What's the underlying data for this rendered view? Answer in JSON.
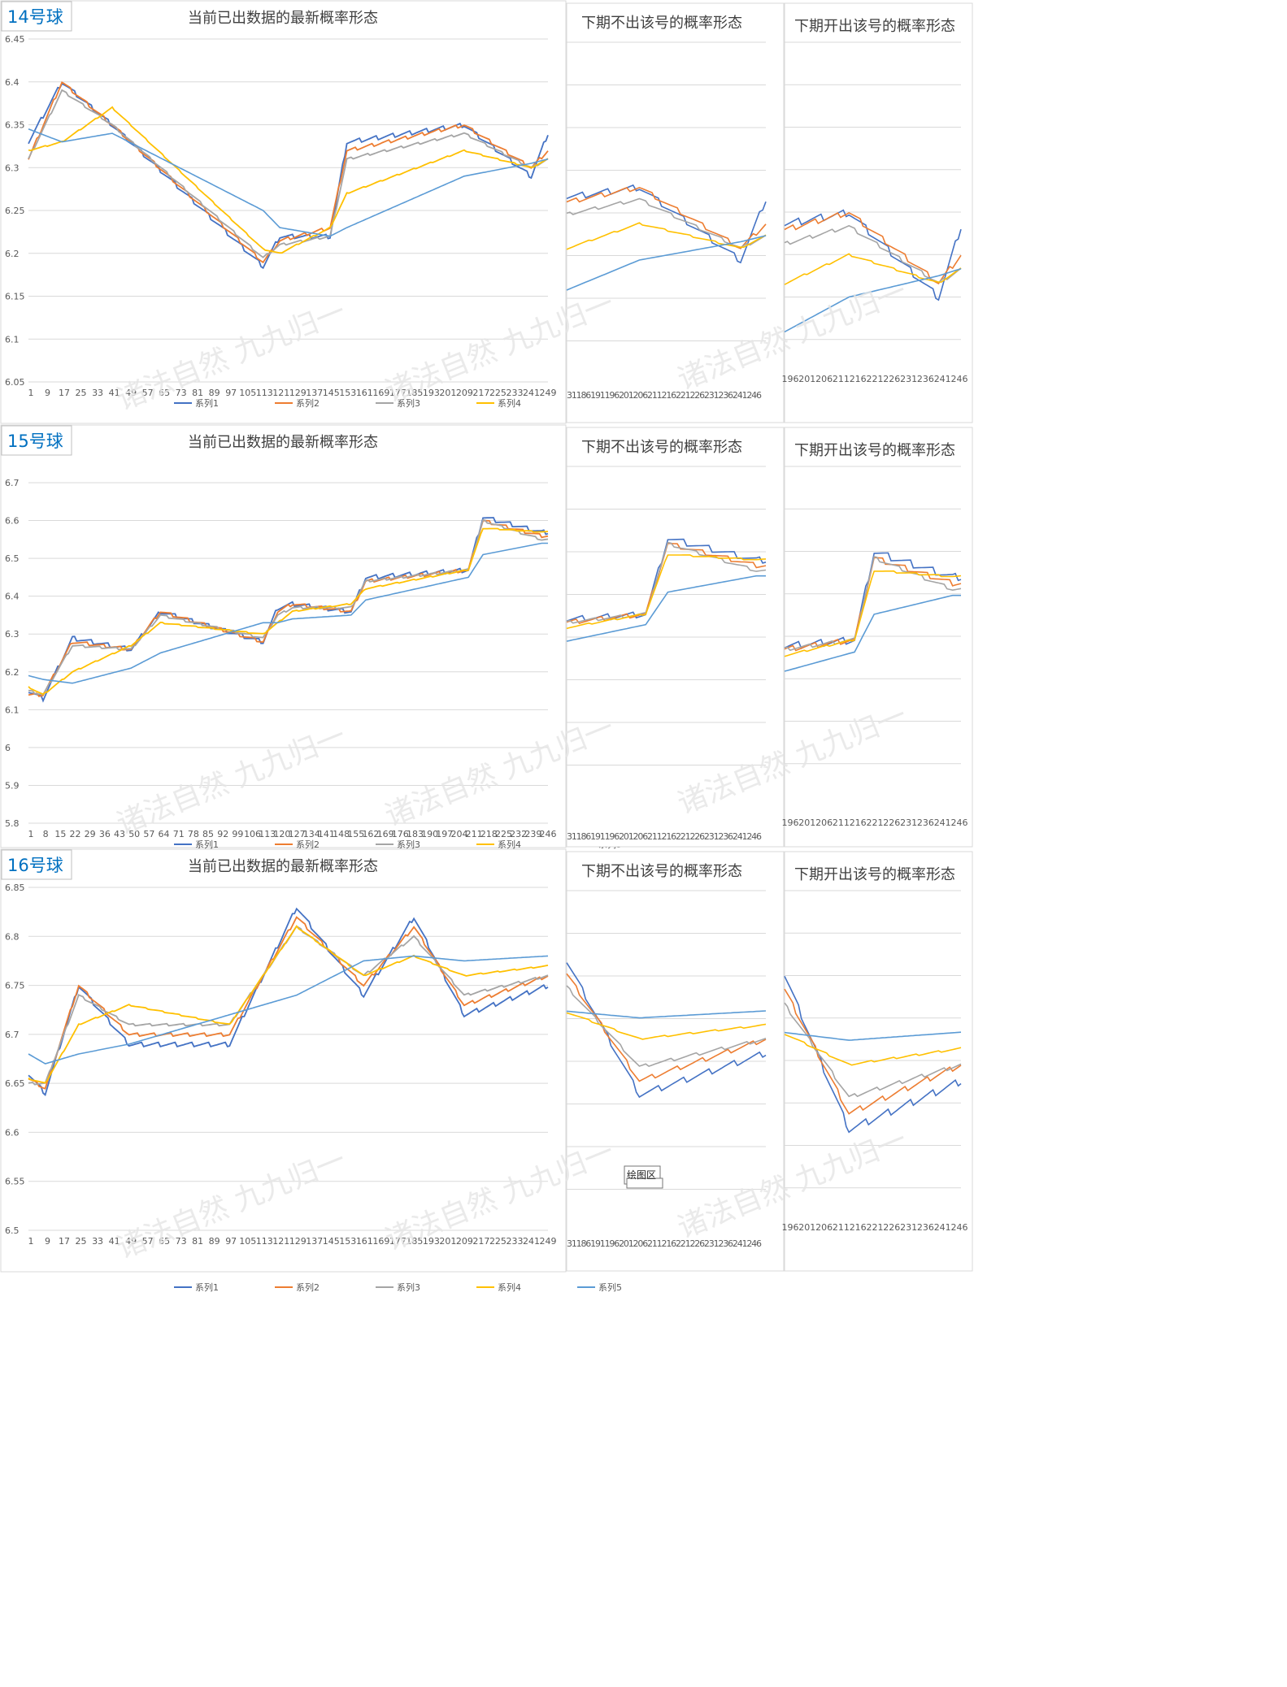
{
  "watermark_text": "诸法自然 九九归一",
  "tooltip": "绘图区",
  "colors": {
    "s1": "#4472C4",
    "s2": "#ED7D31",
    "s3": "#A5A5A5",
    "s4": "#FFC000",
    "s5": "#5B9BD5",
    "grid": "#D9D9D9",
    "axis_text": "#595959",
    "title_text": "#404040",
    "label_blue": "#0070C0"
  },
  "legend": [
    "系列1",
    "系列2",
    "系列3",
    "系列4",
    "系列5"
  ],
  "rows": [
    {
      "ball_label": "14号球",
      "main_title": "当前已出数据的最新概率形态",
      "mid_title": "下期不出该号的概率形态",
      "right_title": "下期开出该号的概率形态",
      "yticks": [
        "6.45",
        "6.4",
        "6.35",
        "6.3",
        "6.25",
        "6.2",
        "6.15",
        "6.1",
        "6.05"
      ],
      "xticks": [
        "1",
        "9",
        "17",
        "25",
        "33",
        "41",
        "49",
        "57",
        "65",
        "73",
        "81",
        "89",
        "97",
        "105",
        "113",
        "121",
        "129",
        "137",
        "145",
        "153",
        "161",
        "169",
        "177",
        "185",
        "193",
        "201",
        "209",
        "217",
        "225",
        "233",
        "241",
        "249"
      ],
      "mid_xtick_text": "31186191196201206211216221226231236241246",
      "right_xticks": [
        "196",
        "201",
        "206",
        "211",
        "216",
        "221",
        "226",
        "231",
        "236",
        "241",
        "246"
      ]
    },
    {
      "ball_label": "15号球",
      "main_title": "当前已出数据的最新概率形态",
      "mid_title": "下期不出该号的概率形态",
      "right_title": "下期开出该号的概率形态",
      "yticks": [
        "6.7",
        "6.6",
        "6.5",
        "6.4",
        "6.3",
        "6.2",
        "6.1",
        "6",
        "5.9",
        "5.8"
      ],
      "xticks": [
        "1",
        "8",
        "15",
        "22",
        "29",
        "36",
        "43",
        "50",
        "57",
        "64",
        "71",
        "78",
        "85",
        "92",
        "99",
        "106",
        "113",
        "120",
        "127",
        "134",
        "141",
        "148",
        "155",
        "162",
        "169",
        "176",
        "183",
        "190",
        "197",
        "204",
        "211",
        "218",
        "225",
        "232",
        "239",
        "246"
      ],
      "mid_xtick_text": "31186191196201206211216221226231236241246",
      "right_xticks": [
        "196",
        "201",
        "206",
        "211",
        "216",
        "221",
        "226",
        "231",
        "236",
        "241",
        "246"
      ]
    },
    {
      "ball_label": "16号球",
      "main_title": "当前已出数据的最新概率形态",
      "mid_title": "下期不出该号的概率形态",
      "right_title": "下期开出该号的概率形态",
      "yticks": [
        "6.85",
        "6.8",
        "6.75",
        "6.7",
        "6.65",
        "6.6",
        "6.55",
        "6.5"
      ],
      "xticks": [
        "1",
        "9",
        "17",
        "25",
        "33",
        "41",
        "49",
        "57",
        "65",
        "73",
        "81",
        "89",
        "97",
        "105",
        "113",
        "121",
        "129",
        "137",
        "145",
        "153",
        "161",
        "169",
        "177",
        "185",
        "193",
        "201",
        "209",
        "217",
        "225",
        "233",
        "241",
        "249"
      ],
      "mid_xtick_text": "31186191196201206211216221226231236241246",
      "right_xticks": [
        "196",
        "201",
        "206",
        "211",
        "216",
        "221",
        "226",
        "231",
        "236",
        "241",
        "246"
      ]
    }
  ],
  "chart_data": [
    {
      "type": "line",
      "title": "当前已出数据的最新概率形态",
      "ylim": [
        6.05,
        6.45
      ],
      "x": [
        1,
        17,
        41,
        113,
        121,
        145,
        153,
        209,
        241,
        249
      ],
      "series": [
        {
          "name": "系列1",
          "values": [
            6.33,
            6.4,
            6.35,
            6.185,
            6.22,
            6.22,
            6.33,
            6.35,
            6.29,
            6.34
          ]
        },
        {
          "name": "系列2",
          "values": [
            6.31,
            6.4,
            6.35,
            6.19,
            6.215,
            6.23,
            6.32,
            6.35,
            6.3,
            6.32
          ]
        },
        {
          "name": "系列3",
          "values": [
            6.31,
            6.39,
            6.35,
            6.195,
            6.21,
            6.22,
            6.31,
            6.34,
            6.3,
            6.31
          ]
        },
        {
          "name": "系列4",
          "values": [
            6.32,
            6.33,
            6.37,
            6.205,
            6.2,
            6.23,
            6.27,
            6.32,
            6.3,
            6.31
          ]
        },
        {
          "name": "系列5",
          "values": [
            6.345,
            6.33,
            6.34,
            6.25,
            6.23,
            6.22,
            6.23,
            6.29,
            6.305,
            6.31
          ]
        }
      ]
    },
    {
      "type": "line",
      "title": "当前已出数据的最新概率形态",
      "ylim": [
        5.8,
        6.7
      ],
      "x": [
        1,
        8,
        22,
        50,
        64,
        113,
        120,
        127,
        155,
        162,
        211,
        218,
        246
      ],
      "series": [
        {
          "name": "系列1",
          "values": [
            6.15,
            6.13,
            6.29,
            6.26,
            6.36,
            6.28,
            6.37,
            6.38,
            6.36,
            6.45,
            6.47,
            6.61,
            6.57
          ]
        },
        {
          "name": "系列2",
          "values": [
            6.14,
            6.14,
            6.28,
            6.26,
            6.36,
            6.28,
            6.36,
            6.38,
            6.36,
            6.44,
            6.47,
            6.6,
            6.56
          ]
        },
        {
          "name": "系列3",
          "values": [
            6.15,
            6.14,
            6.27,
            6.26,
            6.35,
            6.29,
            6.35,
            6.37,
            6.37,
            6.44,
            6.47,
            6.6,
            6.55
          ]
        },
        {
          "name": "系列4",
          "values": [
            6.16,
            6.14,
            6.2,
            6.27,
            6.33,
            6.3,
            6.33,
            6.36,
            6.38,
            6.42,
            6.47,
            6.58,
            6.57
          ]
        },
        {
          "name": "系列5",
          "values": [
            6.19,
            6.18,
            6.17,
            6.21,
            6.25,
            6.33,
            6.33,
            6.34,
            6.35,
            6.39,
            6.45,
            6.51,
            6.54
          ]
        }
      ]
    },
    {
      "type": "line",
      "title": "当前已出数据的最新概率形态",
      "ylim": [
        6.5,
        6.85
      ],
      "x": [
        1,
        9,
        25,
        49,
        97,
        129,
        161,
        185,
        209,
        249
      ],
      "series": [
        {
          "name": "系列1",
          "values": [
            6.66,
            6.64,
            6.75,
            6.69,
            6.69,
            6.83,
            6.74,
            6.82,
            6.72,
            6.75
          ]
        },
        {
          "name": "系列2",
          "values": [
            6.655,
            6.645,
            6.75,
            6.7,
            6.7,
            6.82,
            6.75,
            6.81,
            6.73,
            6.76
          ]
        },
        {
          "name": "系列3",
          "values": [
            6.65,
            6.65,
            6.74,
            6.71,
            6.71,
            6.81,
            6.76,
            6.8,
            6.74,
            6.76
          ]
        },
        {
          "name": "系列4",
          "values": [
            6.655,
            6.65,
            6.71,
            6.73,
            6.71,
            6.81,
            6.76,
            6.78,
            6.76,
            6.77
          ]
        },
        {
          "name": "系列5",
          "values": [
            6.68,
            6.67,
            6.68,
            6.69,
            6.72,
            6.74,
            6.775,
            6.78,
            6.775,
            6.78
          ]
        }
      ]
    }
  ]
}
